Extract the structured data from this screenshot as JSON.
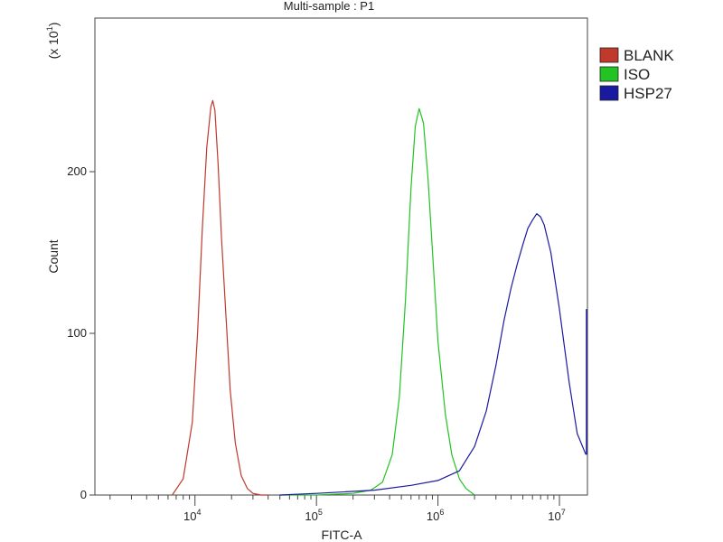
{
  "chart_data": {
    "type": "line",
    "title": "Multi-sample : P1",
    "xlabel": "FITC-A",
    "ylabel": "Count",
    "y_multiplier_label": "(x 10",
    "y_multiplier_exp": "1",
    "x_scale": "log",
    "xlim": [
      1500,
      17000000
    ],
    "ylim": [
      0,
      295
    ],
    "x_ticks": [
      {
        "base": "10",
        "exp": "4",
        "value": 10000
      },
      {
        "base": "10",
        "exp": "5",
        "value": 100000
      },
      {
        "base": "10",
        "exp": "6",
        "value": 1000000
      },
      {
        "base": "10",
        "exp": "7",
        "value": 10000000
      }
    ],
    "y_ticks": [
      {
        "label": "0",
        "value": 0
      },
      {
        "label": "100",
        "value": 100
      },
      {
        "label": "200",
        "value": 200
      }
    ],
    "legend_position": "right",
    "series": [
      {
        "name": "BLANK",
        "color": "#c0392b",
        "x": [
          6500,
          8000,
          9500,
          10500,
          11500,
          12500,
          13500,
          14000,
          14600,
          15500,
          16500,
          18000,
          19500,
          21500,
          24000,
          27000,
          30000,
          35000,
          40000
        ],
        "y": [
          0,
          10,
          45,
          100,
          165,
          215,
          240,
          244,
          238,
          205,
          160,
          110,
          65,
          32,
          12,
          4,
          1,
          0,
          0
        ]
      },
      {
        "name": "ISO",
        "color": "#22c322",
        "x": [
          50000,
          100000,
          200000,
          280000,
          350000,
          420000,
          480000,
          540000,
          600000,
          650000,
          700000,
          760000,
          830000,
          920000,
          1000000,
          1150000,
          1300000,
          1500000,
          1700000,
          2000000
        ],
        "y": [
          0,
          0,
          1,
          3,
          8,
          25,
          60,
          120,
          190,
          228,
          239,
          230,
          195,
          140,
          95,
          50,
          25,
          10,
          4,
          0
        ]
      },
      {
        "name": "HSP27",
        "color": "#1a1aa0",
        "x": [
          50000,
          100000,
          300000,
          600000,
          1000000,
          1500000,
          2000000,
          2500000,
          3000000,
          3500000,
          4000000,
          4500000,
          5000000,
          5500000,
          6000000,
          6500000,
          7000000,
          7500000,
          8500000,
          10000000,
          12000000,
          14000000,
          16500000
        ],
        "y": [
          0,
          1,
          3,
          6,
          9,
          15,
          30,
          52,
          80,
          108,
          128,
          143,
          155,
          165,
          170,
          174,
          172,
          167,
          150,
          115,
          70,
          38,
          25
        ]
      }
    ]
  }
}
